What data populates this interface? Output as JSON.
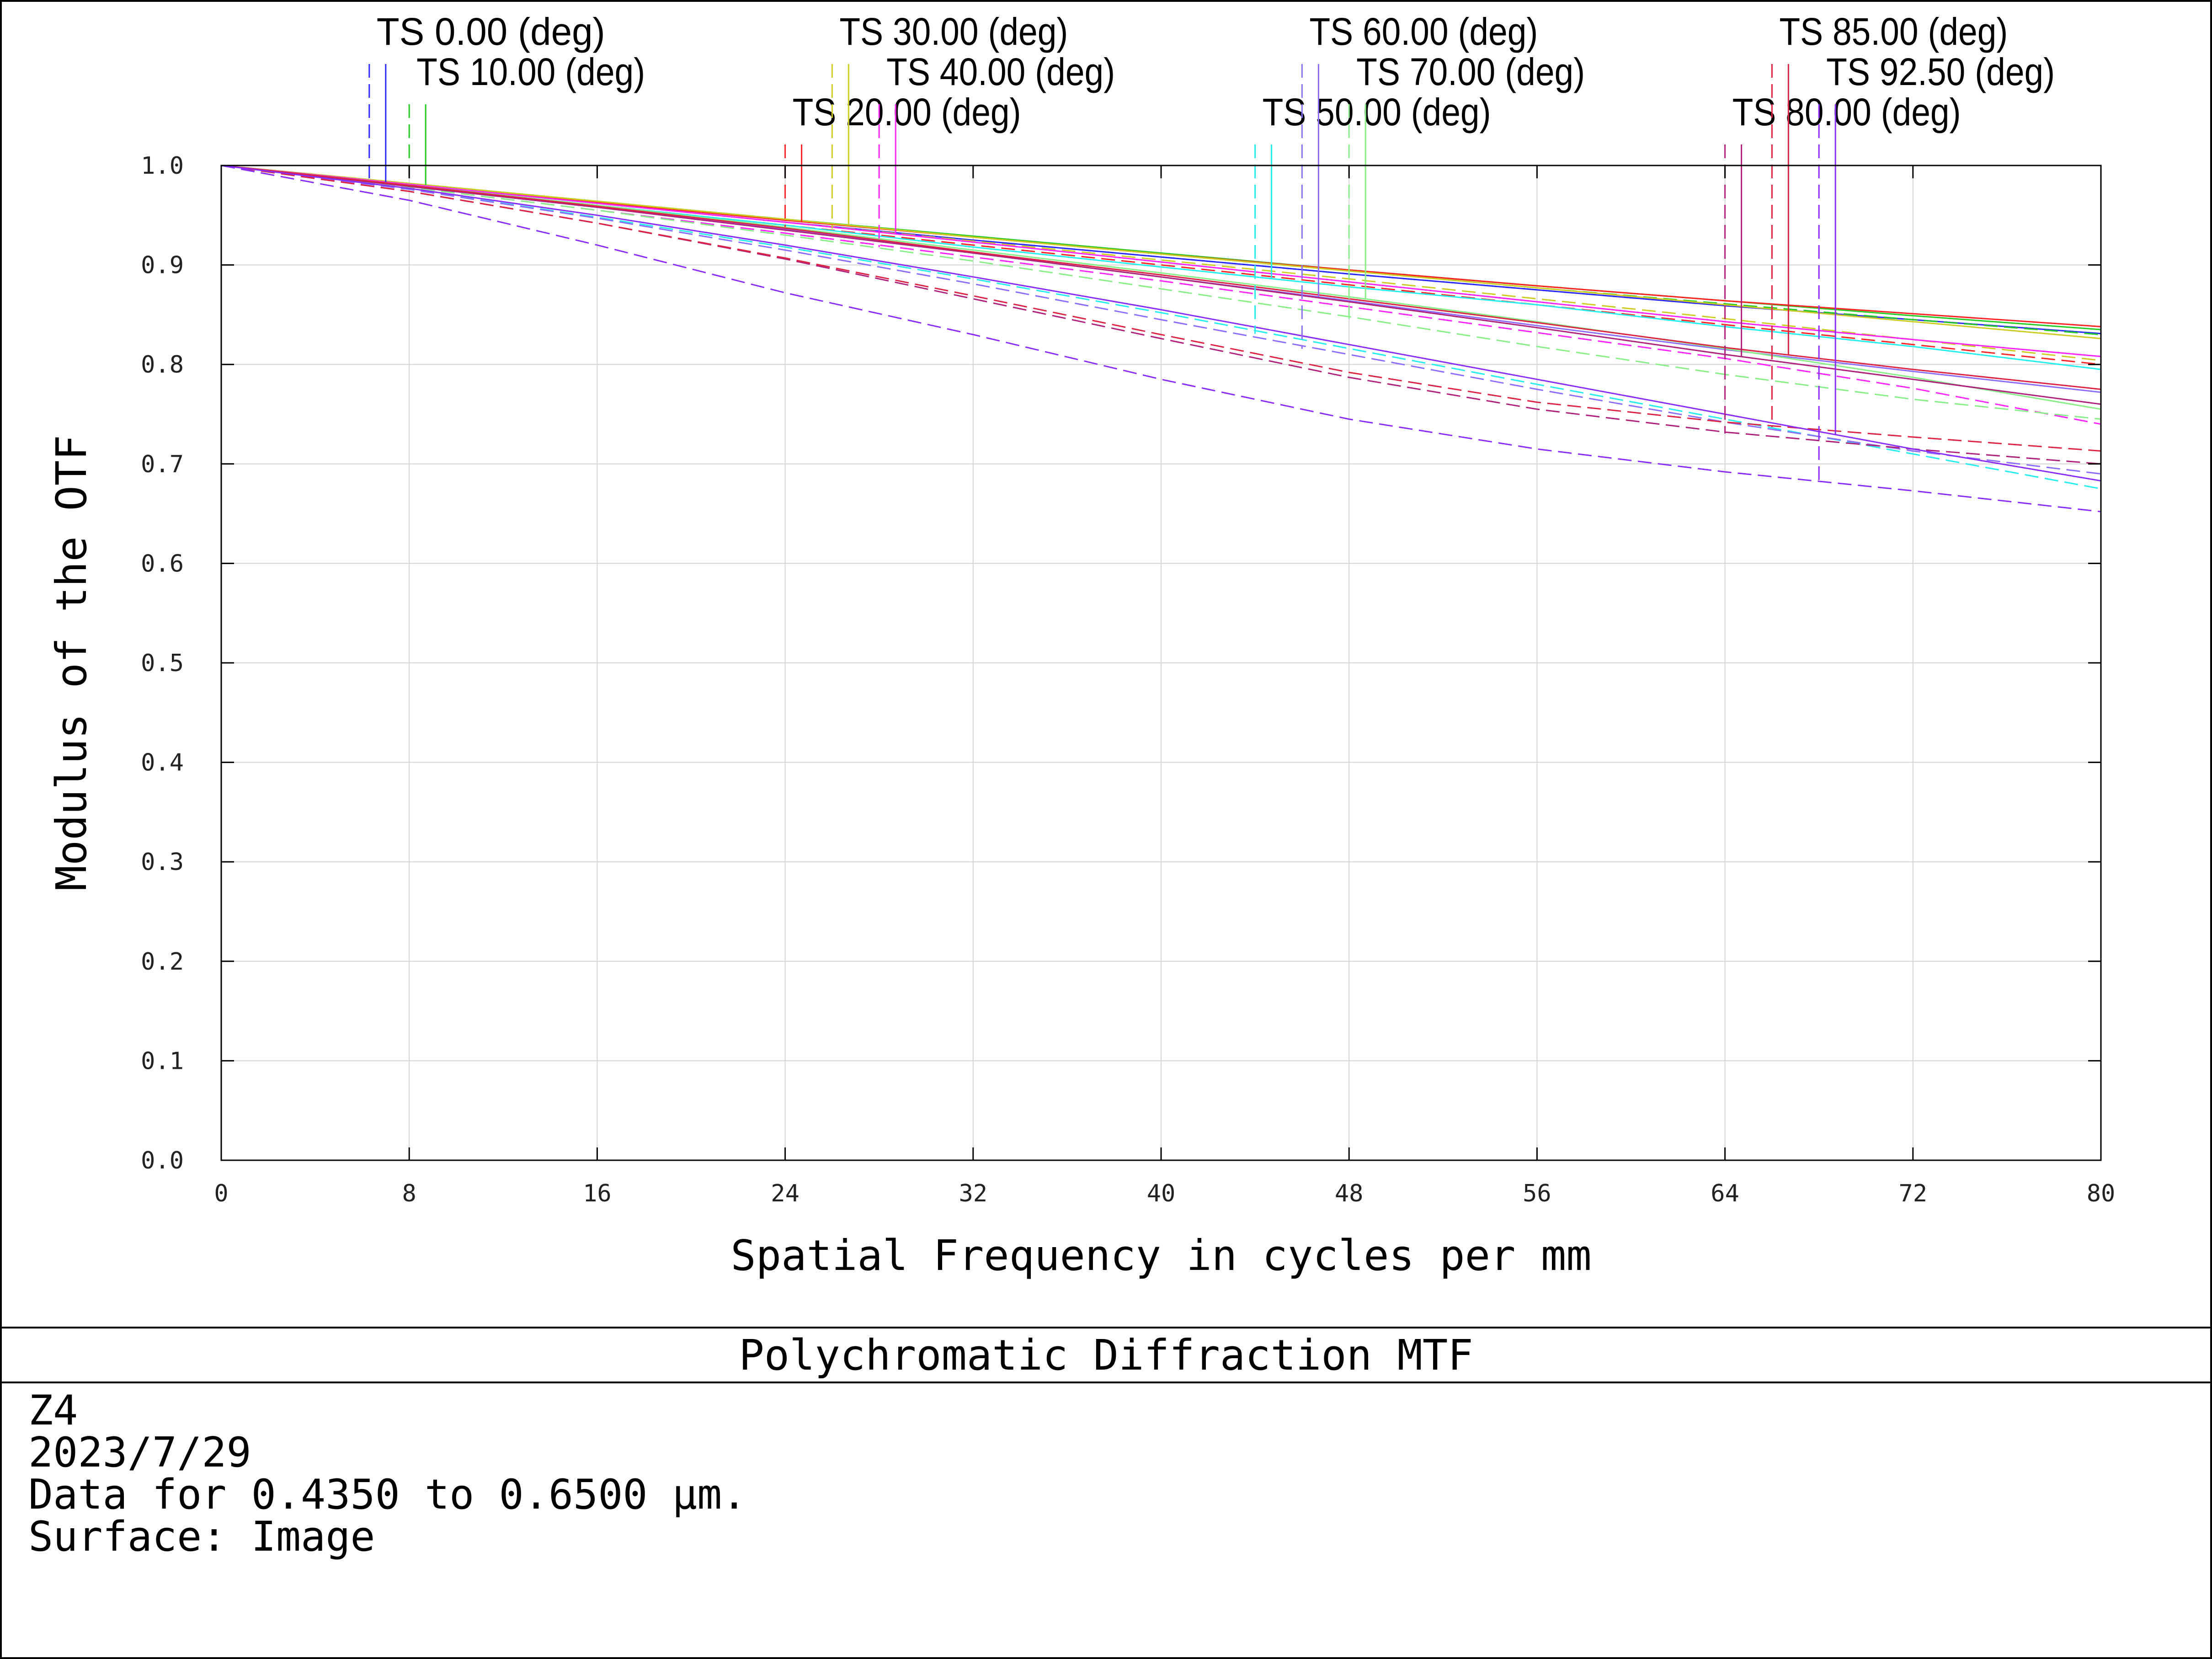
{
  "title": "Polychromatic Diffraction MTF",
  "info": {
    "line1": "Z4",
    "line2": "2023/7/29",
    "line3": "Data for 0.4350 to 0.6500 µm.",
    "line4": "Surface: Image"
  },
  "chart_data": {
    "type": "line",
    "title": "Polychromatic Diffraction MTF",
    "xlabel": "Spatial Frequency in cycles per mm",
    "ylabel": "Modulus of the OTF",
    "xlim": [
      0,
      80
    ],
    "ylim": [
      0,
      1.0
    ],
    "xticks": [
      "0",
      "8",
      "16",
      "24",
      "32",
      "40",
      "48",
      "56",
      "64",
      "72",
      "80"
    ],
    "yticks": [
      "0.0",
      "0.1",
      "0.2",
      "0.3",
      "0.4",
      "0.5",
      "0.6",
      "0.7",
      "0.8",
      "0.9",
      "1.0"
    ],
    "grid": true,
    "legend_placement": "top",
    "x": [
      0,
      8,
      16,
      24,
      32,
      40,
      48,
      56,
      64,
      72,
      80
    ],
    "series": [
      {
        "name": "TS 0.00 (deg)",
        "color": "#2a2aff",
        "style": "tangential",
        "values": [
          1.0,
          0.981,
          0.962,
          0.943,
          0.925,
          0.908,
          0.891,
          0.875,
          0.859,
          0.845,
          0.831
        ]
      },
      {
        "name": "TS 0.00 (deg)",
        "color": "#2a2aff",
        "style": "sagittal",
        "values": [
          1.0,
          0.981,
          0.962,
          0.943,
          0.925,
          0.908,
          0.891,
          0.875,
          0.859,
          0.845,
          0.831
        ]
      },
      {
        "name": "TS 10.00 (deg)",
        "color": "#22cc22",
        "style": "tangential",
        "values": [
          1.0,
          0.982,
          0.964,
          0.946,
          0.929,
          0.912,
          0.895,
          0.879,
          0.864,
          0.849,
          0.835
        ]
      },
      {
        "name": "TS 10.00 (deg)",
        "color": "#22cc22",
        "style": "sagittal",
        "values": [
          1.0,
          0.982,
          0.964,
          0.946,
          0.928,
          0.911,
          0.894,
          0.877,
          0.861,
          0.845,
          0.83
        ]
      },
      {
        "name": "TS 20.00 (deg)",
        "color": "#ff2222",
        "style": "tangential",
        "values": [
          1.0,
          0.981,
          0.963,
          0.945,
          0.928,
          0.911,
          0.895,
          0.879,
          0.864,
          0.851,
          0.838
        ]
      },
      {
        "name": "TS 20.00 (deg)",
        "color": "#ff2222",
        "style": "sagittal",
        "values": [
          1.0,
          0.98,
          0.96,
          0.94,
          0.92,
          0.9,
          0.88,
          0.86,
          0.84,
          0.82,
          0.8
        ]
      },
      {
        "name": "TS 30.00 (deg)",
        "color": "#cccc22",
        "style": "tangential",
        "values": [
          1.0,
          0.982,
          0.964,
          0.946,
          0.928,
          0.911,
          0.894,
          0.877,
          0.86,
          0.843,
          0.826
        ]
      },
      {
        "name": "TS 30.00 (deg)",
        "color": "#cccc22",
        "style": "sagittal",
        "values": [
          1.0,
          0.981,
          0.962,
          0.943,
          0.924,
          0.905,
          0.886,
          0.866,
          0.846,
          0.825,
          0.804
        ]
      },
      {
        "name": "TS 40.00 (deg)",
        "color": "#ff22ff",
        "style": "tangential",
        "values": [
          1.0,
          0.981,
          0.962,
          0.943,
          0.923,
          0.903,
          0.883,
          0.863,
          0.843,
          0.825,
          0.808
        ]
      },
      {
        "name": "TS 40.00 (deg)",
        "color": "#ff22ff",
        "style": "sagittal",
        "values": [
          1.0,
          0.978,
          0.955,
          0.932,
          0.908,
          0.884,
          0.858,
          0.832,
          0.806,
          0.776,
          0.74
        ]
      },
      {
        "name": "TS 50.00 (deg)",
        "color": "#22eeee",
        "style": "tangential",
        "values": [
          1.0,
          0.98,
          0.96,
          0.94,
          0.918,
          0.898,
          0.878,
          0.86,
          0.838,
          0.818,
          0.795
        ]
      },
      {
        "name": "TS 50.00 (deg)",
        "color": "#22eeee",
        "style": "sagittal",
        "values": [
          1.0,
          0.976,
          0.948,
          0.918,
          0.886,
          0.852,
          0.816,
          0.78,
          0.745,
          0.71,
          0.675
        ]
      },
      {
        "name": "TS 60.00 (deg)",
        "color": "#8c6cff",
        "style": "tangential",
        "values": [
          1.0,
          0.979,
          0.958,
          0.936,
          0.912,
          0.888,
          0.864,
          0.839,
          0.815,
          0.793,
          0.772
        ]
      },
      {
        "name": "TS 60.00 (deg)",
        "color": "#8c6cff",
        "style": "sagittal",
        "values": [
          1.0,
          0.976,
          0.947,
          0.915,
          0.881,
          0.845,
          0.81,
          0.775,
          0.742,
          0.713,
          0.69
        ]
      },
      {
        "name": "TS 70.00 (deg)",
        "color": "#88ee88",
        "style": "tangential",
        "values": [
          1.0,
          0.98,
          0.96,
          0.938,
          0.915,
          0.892,
          0.868,
          0.843,
          0.816,
          0.787,
          0.755
        ]
      },
      {
        "name": "TS 70.00 (deg)",
        "color": "#88ee88",
        "style": "sagittal",
        "values": [
          1.0,
          0.978,
          0.955,
          0.93,
          0.904,
          0.876,
          0.848,
          0.818,
          0.79,
          0.765,
          0.745
        ]
      },
      {
        "name": "TS 80.00 (deg)",
        "color": "#b0207a",
        "style": "tangential",
        "values": [
          1.0,
          0.979,
          0.958,
          0.935,
          0.912,
          0.888,
          0.863,
          0.837,
          0.81,
          0.785,
          0.76
        ]
      },
      {
        "name": "TS 80.00 (deg)",
        "color": "#b0207a",
        "style": "sagittal",
        "values": [
          1.0,
          0.974,
          0.942,
          0.906,
          0.866,
          0.826,
          0.787,
          0.755,
          0.732,
          0.715,
          0.7
        ]
      },
      {
        "name": "TS 85.00 (deg)",
        "color": "#dd2244",
        "style": "tangential",
        "values": [
          1.0,
          0.98,
          0.959,
          0.937,
          0.913,
          0.89,
          0.866,
          0.842,
          0.817,
          0.795,
          0.775
        ]
      },
      {
        "name": "TS 85.00 (deg)",
        "color": "#dd2244",
        "style": "sagittal",
        "values": [
          1.0,
          0.974,
          0.942,
          0.907,
          0.869,
          0.83,
          0.792,
          0.762,
          0.742,
          0.727,
          0.713
        ]
      },
      {
        "name": "TS 92.50 (deg)",
        "color": "#8a2bff",
        "style": "tangential",
        "values": [
          1.0,
          0.977,
          0.95,
          0.92,
          0.888,
          0.855,
          0.82,
          0.785,
          0.75,
          0.715,
          0.683
        ]
      },
      {
        "name": "TS 92.50 (deg)",
        "color": "#8a2bff",
        "style": "sagittal",
        "values": [
          1.0,
          0.965,
          0.92,
          0.872,
          0.83,
          0.785,
          0.745,
          0.715,
          0.692,
          0.673,
          0.652
        ]
      }
    ],
    "legend_markers": [
      {
        "label": "TS 0.00 (deg)",
        "color": "#2a2aff",
        "x": 7
      },
      {
        "label": "TS 10.00 (deg)",
        "color": "#22cc22",
        "x": 8.7
      },
      {
        "label": "TS 20.00 (deg)",
        "color": "#ff2222",
        "x": 24.7
      },
      {
        "label": "TS 30.00 (deg)",
        "color": "#cccc22",
        "x": 26.7
      },
      {
        "label": "TS 40.00 (deg)",
        "color": "#ff22ff",
        "x": 28.7
      },
      {
        "label": "TS 50.00 (deg)",
        "color": "#22eeee",
        "x": 44.7
      },
      {
        "label": "TS 60.00 (deg)",
        "color": "#8c6cff",
        "x": 46.7
      },
      {
        "label": "TS 70.00 (deg)",
        "color": "#88ee88",
        "x": 48.7
      },
      {
        "label": "TS 80.00 (deg)",
        "color": "#b0207a",
        "x": 64.7
      },
      {
        "label": "TS 85.00 (deg)",
        "color": "#dd2244",
        "x": 66.7
      },
      {
        "label": "TS 92.50 (deg)",
        "color": "#8a2bff",
        "x": 68.7
      }
    ]
  }
}
